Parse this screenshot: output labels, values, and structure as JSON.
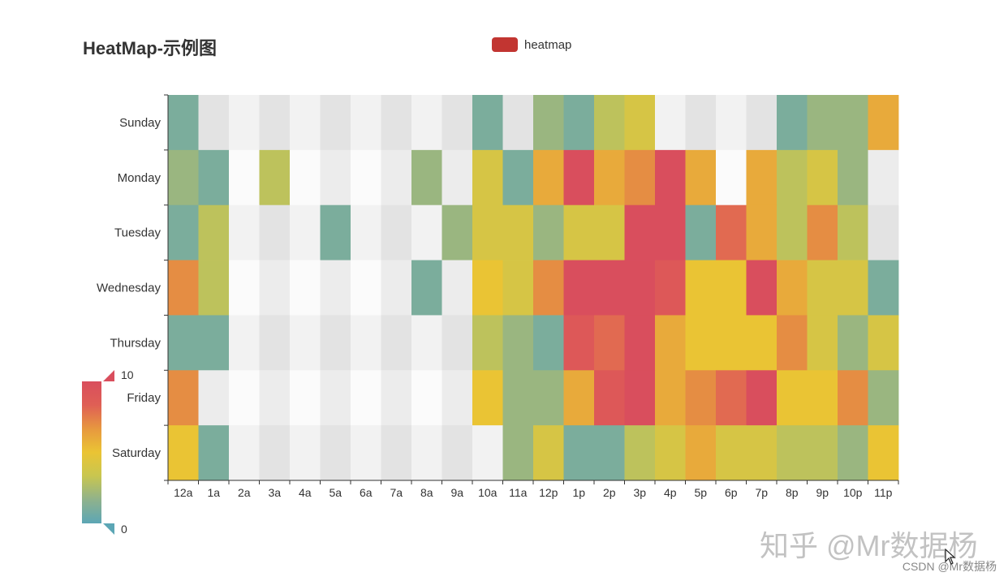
{
  "colors": {
    "palette": [
      "#5ca6b5",
      "#8fb28c",
      "#c8c650",
      "#eac434",
      "#e7983f",
      "#df5f55",
      "#d94e5d"
    ],
    "empty_shades": [
      "#f2f2f2",
      "#e3e3e3",
      "#fbfbfb",
      "#ececec"
    ],
    "legend": "#c23531",
    "axis": "#333333",
    "label": "#333333"
  },
  "watermarks": {
    "zhihu": "知乎 @Mr数据杨",
    "csdn": "CSDN @Mr数据杨"
  },
  "chart_data": {
    "type": "heatmap",
    "title": "HeatMap-示例图",
    "legend": [
      "heatmap"
    ],
    "legend_position": "top-center",
    "x_categories": [
      "12a",
      "1a",
      "2a",
      "3a",
      "4a",
      "5a",
      "6a",
      "7a",
      "8a",
      "9a",
      "10a",
      "11a",
      "12p",
      "1p",
      "2p",
      "3p",
      "4p",
      "5p",
      "6p",
      "7p",
      "8p",
      "9p",
      "10p",
      "11p"
    ],
    "y_categories": [
      "Sunday",
      "Monday",
      "Tuesday",
      "Wednesday",
      "Thursday",
      "Friday",
      "Saturday"
    ],
    "visual_map": {
      "min": 0,
      "max": 10,
      "min_label": "0",
      "max_label": "10",
      "position": "bottom-left",
      "orientation": "vertical"
    },
    "values": [
      [
        1,
        null,
        null,
        null,
        null,
        null,
        null,
        null,
        null,
        null,
        1,
        null,
        2,
        1,
        3,
        4,
        null,
        null,
        null,
        null,
        1,
        2,
        2,
        6
      ],
      [
        2,
        1,
        null,
        3,
        null,
        null,
        null,
        null,
        2,
        null,
        4,
        1,
        6,
        10,
        6,
        7,
        10,
        6,
        null,
        6,
        3,
        4,
        2,
        null
      ],
      [
        1,
        3,
        null,
        null,
        null,
        1,
        null,
        null,
        null,
        2,
        4,
        4,
        2,
        4,
        4,
        10,
        10,
        1,
        8,
        6,
        3,
        7,
        3,
        null
      ],
      [
        7,
        3,
        null,
        null,
        null,
        null,
        null,
        null,
        1,
        null,
        5,
        4,
        7,
        10,
        10,
        10,
        9,
        5,
        5,
        10,
        6,
        4,
        4,
        1
      ],
      [
        1,
        1,
        null,
        null,
        null,
        null,
        null,
        null,
        null,
        null,
        3,
        2,
        1,
        9,
        8,
        10,
        6,
        5,
        5,
        5,
        7,
        4,
        2,
        4
      ],
      [
        7,
        null,
        null,
        null,
        null,
        null,
        null,
        null,
        null,
        null,
        5,
        2,
        2,
        6,
        9,
        10,
        6,
        7,
        8,
        10,
        5,
        5,
        7,
        2
      ],
      [
        5,
        1,
        null,
        null,
        null,
        null,
        null,
        null,
        null,
        null,
        null,
        2,
        4,
        1,
        1,
        3,
        4,
        6,
        4,
        4,
        3,
        3,
        2,
        5
      ]
    ]
  }
}
